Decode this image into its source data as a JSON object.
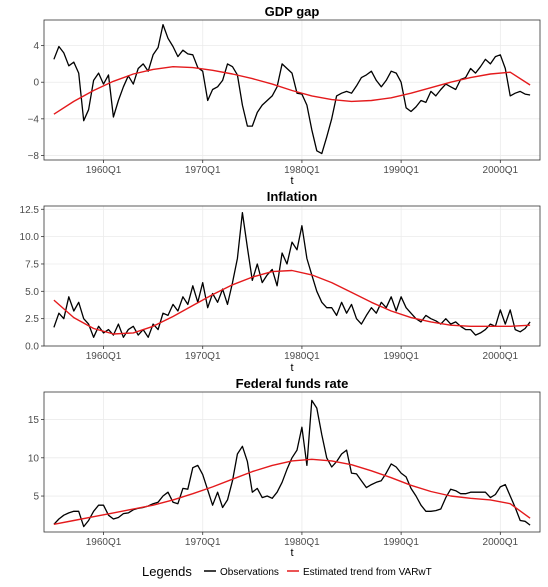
{
  "legend": {
    "title": "Legends",
    "items": [
      {
        "label": "Observations",
        "color": "#000000"
      },
      {
        "label": "Estimated trend from VARwT",
        "color": "#e41a1c"
      }
    ]
  },
  "chart_data": [
    {
      "type": "line",
      "title": "GDP gap",
      "xlabel": "t",
      "ylabel": "",
      "xlim": [
        1954,
        2004
      ],
      "ylim": [
        -8.5,
        6.8
      ],
      "yticks": [
        -8,
        -4,
        0,
        4
      ],
      "ytick_labels": [
        "−8",
        "−4",
        "0",
        "4"
      ],
      "xticks": [
        1960,
        1970,
        1980,
        1990,
        2000
      ],
      "xtick_labels": [
        "1960Q1",
        "1970Q1",
        "1980Q1",
        "1990Q1",
        "2000Q1"
      ],
      "series": [
        {
          "role": "observations",
          "x": [
            1955.0,
            1955.5,
            1956.0,
            1956.5,
            1957.0,
            1957.5,
            1958.0,
            1958.5,
            1959.0,
            1959.5,
            1960.0,
            1960.5,
            1961.0,
            1961.5,
            1962.0,
            1962.5,
            1963.0,
            1963.5,
            1964.0,
            1964.5,
            1965.0,
            1965.5,
            1966.0,
            1966.5,
            1967.0,
            1967.5,
            1968.0,
            1968.5,
            1969.0,
            1969.5,
            1970.0,
            1970.5,
            1971.0,
            1971.5,
            1972.0,
            1972.5,
            1973.0,
            1973.5,
            1974.0,
            1974.5,
            1975.0,
            1975.5,
            1976.0,
            1976.5,
            1977.0,
            1977.5,
            1978.0,
            1978.5,
            1979.0,
            1979.5,
            1980.0,
            1980.5,
            1981.0,
            1981.5,
            1982.0,
            1982.5,
            1983.0,
            1983.5,
            1984.0,
            1984.5,
            1985.0,
            1985.5,
            1986.0,
            1986.5,
            1987.0,
            1987.5,
            1988.0,
            1988.5,
            1989.0,
            1989.5,
            1990.0,
            1990.5,
            1991.0,
            1991.5,
            1992.0,
            1992.5,
            1993.0,
            1993.5,
            1994.0,
            1994.5,
            1995.0,
            1995.5,
            1996.0,
            1996.5,
            1997.0,
            1997.5,
            1998.0,
            1998.5,
            1999.0,
            1999.5,
            2000.0,
            2000.5,
            2001.0,
            2001.5,
            2002.0,
            2002.5,
            2003.0
          ],
          "y": [
            2.5,
            3.9,
            3.2,
            1.8,
            2.2,
            1.0,
            -4.2,
            -3.0,
            0.2,
            1.0,
            -0.2,
            0.8,
            -3.8,
            -2.0,
            -0.5,
            0.7,
            -0.2,
            1.5,
            2.0,
            1.2,
            3.0,
            3.8,
            6.3,
            4.8,
            3.9,
            2.8,
            3.5,
            3.1,
            3.0,
            1.6,
            1.2,
            -2.0,
            -0.8,
            -0.5,
            0.2,
            2.0,
            1.7,
            0.8,
            -2.5,
            -4.8,
            -4.8,
            -3.3,
            -2.5,
            -2.0,
            -1.5,
            -0.5,
            2.0,
            1.5,
            1.0,
            -1.2,
            -1.3,
            -2.5,
            -5.2,
            -7.5,
            -7.8,
            -6.0,
            -4.0,
            -1.5,
            -1.2,
            -1.0,
            -1.2,
            -0.4,
            0.5,
            0.8,
            1.2,
            0.2,
            -0.5,
            0.2,
            1.2,
            1.0,
            0.0,
            -2.8,
            -3.2,
            -2.7,
            -2.0,
            -2.2,
            -1.0,
            -1.5,
            -0.8,
            -0.2,
            -0.5,
            -0.8,
            0.3,
            0.5,
            1.5,
            1.0,
            1.7,
            2.5,
            2.0,
            2.8,
            3.0,
            1.5,
            -1.5,
            -1.2,
            -1.0,
            -1.3,
            -1.4
          ]
        },
        {
          "role": "trend",
          "x": [
            1955,
            1957,
            1959,
            1961,
            1963,
            1965,
            1967,
            1969,
            1971,
            1973,
            1975,
            1977,
            1979,
            1981,
            1983,
            1985,
            1987,
            1989,
            1991,
            1993,
            1995,
            1997,
            1999,
            2001,
            2003
          ],
          "y": [
            -3.5,
            -2.1,
            -0.9,
            0.1,
            0.9,
            1.4,
            1.7,
            1.6,
            1.3,
            0.9,
            0.4,
            -0.2,
            -0.9,
            -1.5,
            -1.9,
            -2.1,
            -2.0,
            -1.7,
            -1.2,
            -0.6,
            0.0,
            0.5,
            0.9,
            1.1,
            -0.3
          ]
        }
      ]
    },
    {
      "type": "line",
      "title": "Inflation",
      "xlabel": "t",
      "ylabel": "",
      "xlim": [
        1954,
        2004
      ],
      "ylim": [
        0,
        12.8
      ],
      "yticks": [
        0,
        2.5,
        5,
        7.5,
        10,
        12.5
      ],
      "ytick_labels": [
        "0.0",
        "2.5",
        "5.0",
        "7.5",
        "10.0",
        "12.5"
      ],
      "xticks": [
        1960,
        1970,
        1980,
        1990,
        2000
      ],
      "xtick_labels": [
        "1960Q1",
        "1970Q1",
        "1980Q1",
        "1990Q1",
        "2000Q1"
      ],
      "series": [
        {
          "role": "observations",
          "x": [
            1955.0,
            1955.5,
            1956.0,
            1956.5,
            1957.0,
            1957.5,
            1958.0,
            1958.5,
            1959.0,
            1959.5,
            1960.0,
            1960.5,
            1961.0,
            1961.5,
            1962.0,
            1962.5,
            1963.0,
            1963.5,
            1964.0,
            1964.5,
            1965.0,
            1965.5,
            1966.0,
            1966.5,
            1967.0,
            1967.5,
            1968.0,
            1968.5,
            1969.0,
            1969.5,
            1970.0,
            1970.5,
            1971.0,
            1971.5,
            1972.0,
            1972.5,
            1973.0,
            1973.5,
            1974.0,
            1974.5,
            1975.0,
            1975.5,
            1976.0,
            1976.5,
            1977.0,
            1977.5,
            1978.0,
            1978.5,
            1979.0,
            1979.5,
            1980.0,
            1980.5,
            1981.0,
            1981.5,
            1982.0,
            1982.5,
            1983.0,
            1983.5,
            1984.0,
            1984.5,
            1985.0,
            1985.5,
            1986.0,
            1986.5,
            1987.0,
            1987.5,
            1988.0,
            1988.5,
            1989.0,
            1989.5,
            1990.0,
            1990.5,
            1991.0,
            1991.5,
            1992.0,
            1992.5,
            1993.0,
            1993.5,
            1994.0,
            1994.5,
            1995.0,
            1995.5,
            1996.0,
            1996.5,
            1997.0,
            1997.5,
            1998.0,
            1998.5,
            1999.0,
            1999.5,
            2000.0,
            2000.5,
            2001.0,
            2001.5,
            2002.0,
            2002.5,
            2003.0
          ],
          "y": [
            1.7,
            3.0,
            2.5,
            4.5,
            3.2,
            4.0,
            2.5,
            2.0,
            0.8,
            1.8,
            1.2,
            1.5,
            1.0,
            2.0,
            0.8,
            1.5,
            1.8,
            1.0,
            1.5,
            0.8,
            2.0,
            1.5,
            3.0,
            2.8,
            3.8,
            3.2,
            4.5,
            3.8,
            5.5,
            4.0,
            5.8,
            3.5,
            4.8,
            4.0,
            5.2,
            3.8,
            5.8,
            8.0,
            12.2,
            9.0,
            6.0,
            7.5,
            5.8,
            6.5,
            7.0,
            5.5,
            8.5,
            7.5,
            9.5,
            8.8,
            11.0,
            8.0,
            6.5,
            5.0,
            4.0,
            3.5,
            3.5,
            2.8,
            4.0,
            3.0,
            3.8,
            2.5,
            2.0,
            2.8,
            3.5,
            3.0,
            4.0,
            3.5,
            4.5,
            3.2,
            4.5,
            3.5,
            3.0,
            2.5,
            2.2,
            2.8,
            2.5,
            2.3,
            2.0,
            2.5,
            2.0,
            2.2,
            1.8,
            1.5,
            1.5,
            1.0,
            1.2,
            1.5,
            2.0,
            1.8,
            3.3,
            2.0,
            3.3,
            1.5,
            1.3,
            1.6,
            2.2
          ]
        },
        {
          "role": "trend",
          "x": [
            1955,
            1957,
            1959,
            1961,
            1963,
            1965,
            1967,
            1969,
            1971,
            1973,
            1975,
            1977,
            1979,
            1981,
            1983,
            1985,
            1987,
            1989,
            1991,
            1993,
            1995,
            1997,
            1999,
            2001,
            2003
          ],
          "y": [
            4.2,
            2.6,
            1.6,
            1.1,
            1.2,
            1.8,
            2.7,
            3.7,
            4.7,
            5.6,
            6.3,
            6.8,
            6.9,
            6.5,
            5.8,
            4.9,
            4.0,
            3.2,
            2.6,
            2.2,
            1.9,
            1.8,
            1.8,
            1.8,
            1.9
          ]
        }
      ]
    },
    {
      "type": "line",
      "title": "Federal funds rate",
      "xlabel": "t",
      "ylabel": "",
      "xlim": [
        1954,
        2004
      ],
      "ylim": [
        0.3,
        18.6
      ],
      "yticks": [
        5,
        10,
        15
      ],
      "ytick_labels": [
        "5",
        "10",
        "15"
      ],
      "xticks": [
        1960,
        1970,
        1980,
        1990,
        2000
      ],
      "xtick_labels": [
        "1960Q1",
        "1970Q1",
        "1980Q1",
        "1990Q1",
        "2000Q1"
      ],
      "series": [
        {
          "role": "observations",
          "x": [
            1955.0,
            1955.5,
            1956.0,
            1956.5,
            1957.0,
            1957.5,
            1958.0,
            1958.5,
            1959.0,
            1959.5,
            1960.0,
            1960.5,
            1961.0,
            1961.5,
            1962.0,
            1962.5,
            1963.0,
            1963.5,
            1964.0,
            1964.5,
            1965.0,
            1965.5,
            1966.0,
            1966.5,
            1967.0,
            1967.5,
            1968.0,
            1968.5,
            1969.0,
            1969.5,
            1970.0,
            1970.5,
            1971.0,
            1971.5,
            1972.0,
            1972.5,
            1973.0,
            1973.5,
            1974.0,
            1974.5,
            1975.0,
            1975.5,
            1976.0,
            1976.5,
            1977.0,
            1977.5,
            1978.0,
            1978.5,
            1979.0,
            1979.5,
            1980.0,
            1980.5,
            1981.0,
            1981.5,
            1982.0,
            1982.5,
            1983.0,
            1983.5,
            1984.0,
            1984.5,
            1985.0,
            1985.5,
            1986.0,
            1986.5,
            1987.0,
            1987.5,
            1988.0,
            1988.5,
            1989.0,
            1989.5,
            1990.0,
            1990.5,
            1991.0,
            1991.5,
            1992.0,
            1992.5,
            1993.0,
            1993.5,
            1994.0,
            1994.5,
            1995.0,
            1995.5,
            1996.0,
            1996.5,
            1997.0,
            1997.5,
            1998.0,
            1998.5,
            1999.0,
            1999.5,
            2000.0,
            2000.5,
            2001.0,
            2001.5,
            2002.0,
            2002.5,
            2003.0
          ],
          "y": [
            1.3,
            2.0,
            2.5,
            2.8,
            3.0,
            3.0,
            1.0,
            1.8,
            3.0,
            3.8,
            3.8,
            2.5,
            2.0,
            2.2,
            2.7,
            2.8,
            3.2,
            3.4,
            3.5,
            3.7,
            4.0,
            4.2,
            5.0,
            5.5,
            4.2,
            4.0,
            6.0,
            5.9,
            8.7,
            9.0,
            7.8,
            5.8,
            3.8,
            5.5,
            3.5,
            4.5,
            7.0,
            10.5,
            11.5,
            9.5,
            5.5,
            6.0,
            4.8,
            5.0,
            4.7,
            5.5,
            6.8,
            8.5,
            10.0,
            11.0,
            14.0,
            9.0,
            17.5,
            16.5,
            13.0,
            10.0,
            8.8,
            9.5,
            10.5,
            11.0,
            8.0,
            7.9,
            7.0,
            6.1,
            6.5,
            6.8,
            7.0,
            8.0,
            9.2,
            8.8,
            8.0,
            7.5,
            6.0,
            5.0,
            3.8,
            3.0,
            3.0,
            3.1,
            3.3,
            4.8,
            5.9,
            5.7,
            5.3,
            5.3,
            5.5,
            5.5,
            5.5,
            5.5,
            4.8,
            5.2,
            6.2,
            6.5,
            5.0,
            3.5,
            1.8,
            1.7,
            1.2
          ]
        },
        {
          "role": "trend",
          "x": [
            1955,
            1957,
            1959,
            1961,
            1963,
            1965,
            1967,
            1969,
            1971,
            1973,
            1975,
            1977,
            1979,
            1981,
            1983,
            1985,
            1987,
            1989,
            1991,
            1993,
            1995,
            1997,
            1999,
            2001,
            2003
          ],
          "y": [
            1.3,
            1.8,
            2.3,
            2.8,
            3.3,
            3.8,
            4.5,
            5.3,
            6.2,
            7.2,
            8.2,
            9.0,
            9.6,
            9.8,
            9.6,
            9.1,
            8.3,
            7.4,
            6.4,
            5.6,
            5.0,
            4.7,
            4.5,
            4.0,
            2.1
          ]
        }
      ]
    }
  ]
}
